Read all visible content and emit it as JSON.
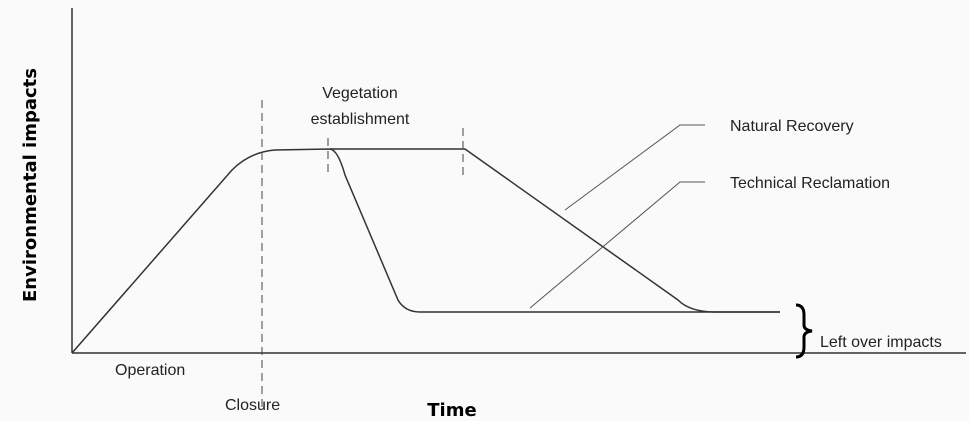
{
  "axes": {
    "y_label": "Environmental impacts",
    "x_label": "Time"
  },
  "labels": {
    "operation": "Operation",
    "closure": "Closure",
    "vegetation": [
      "Vegetation",
      "establishment"
    ],
    "natural_recovery": "Natural Recovery",
    "technical_reclamation": "Technical Reclamation",
    "left_over": "Left over impacts"
  }
}
